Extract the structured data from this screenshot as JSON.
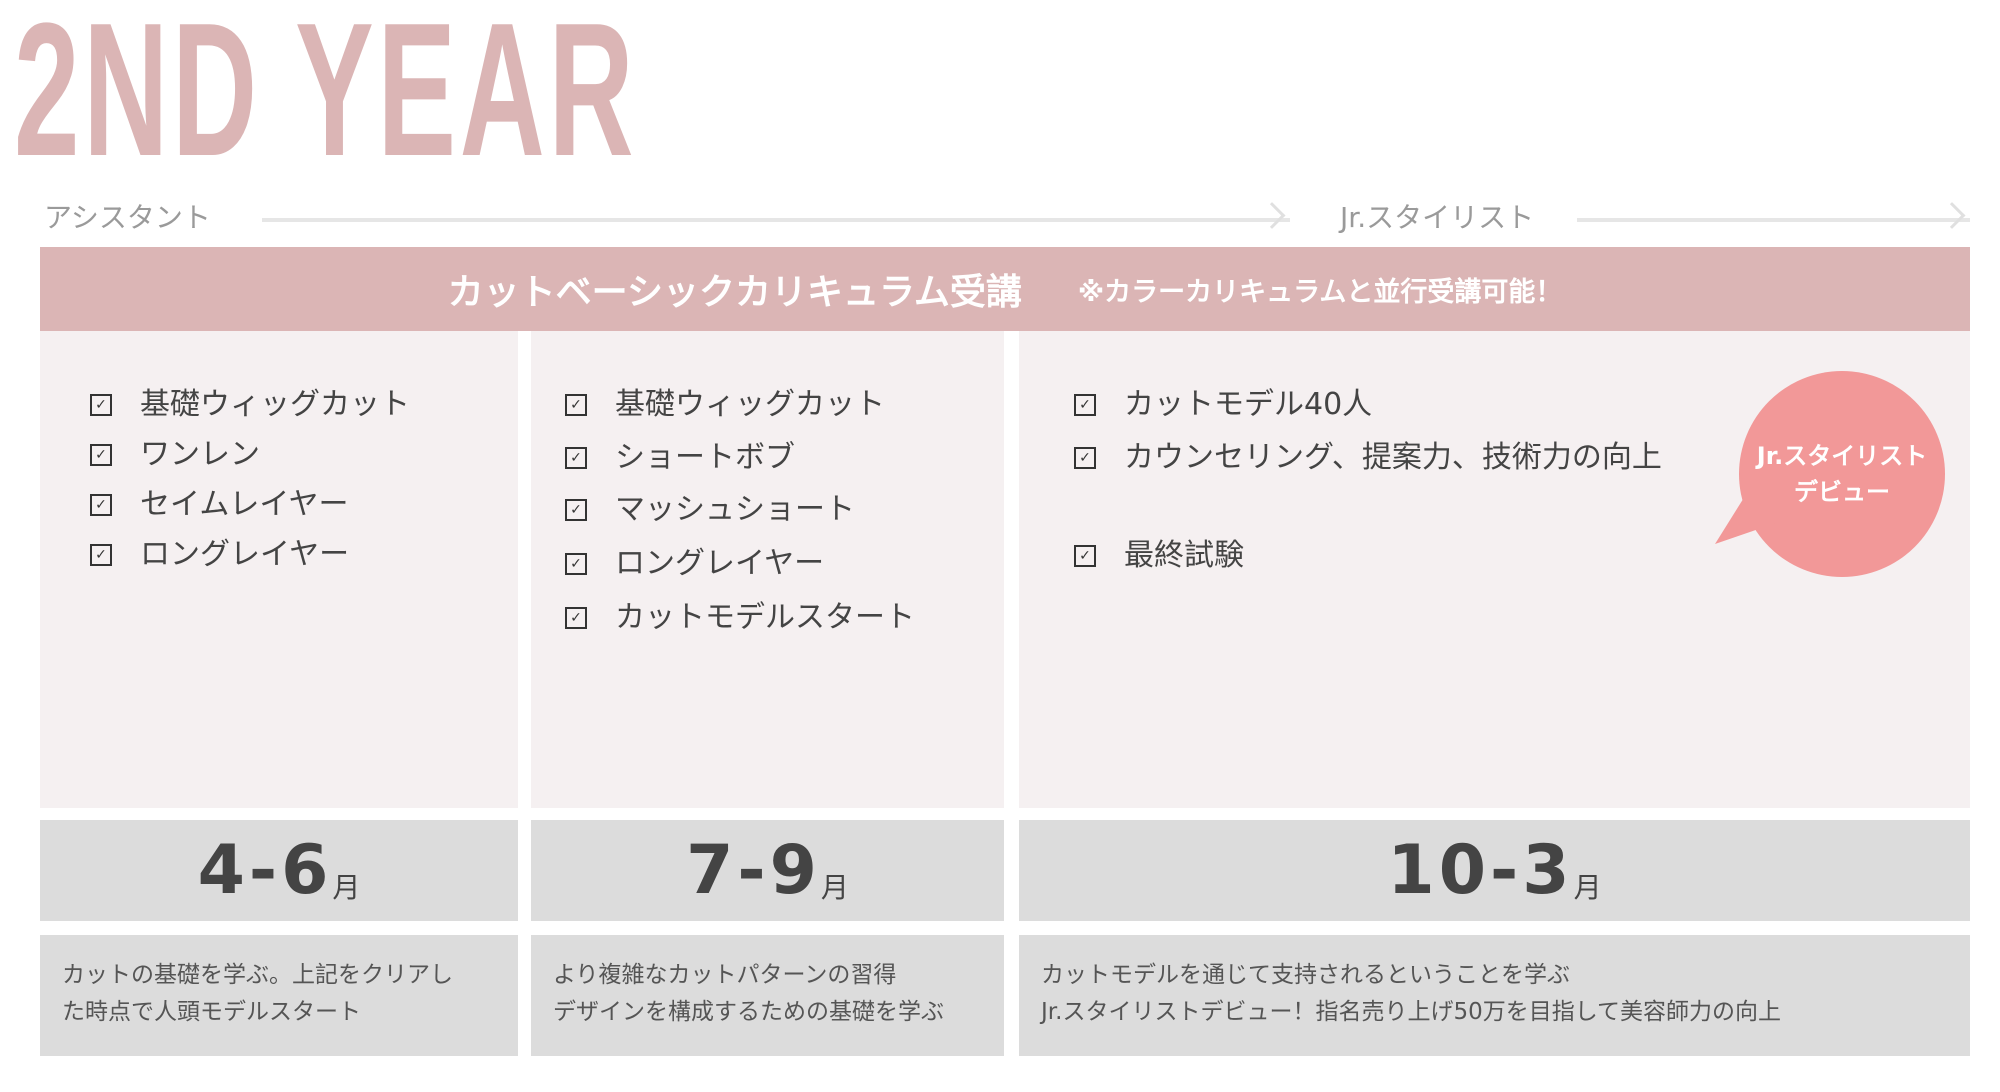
{
  "title": "2ND YEAR",
  "stages": [
    "アシスタント",
    "Jr.スタイリスト"
  ],
  "band": {
    "main": "カットベーシックカリキュラム受講",
    "sub": "※カラーカリキュラムと並行受講可能！"
  },
  "columns": [
    {
      "items": [
        "基礎ウィッグカット",
        "ワンレン",
        "セイムレイヤー",
        "ロングレイヤー"
      ],
      "month_num": "4-6",
      "month_unit": "月",
      "desc": [
        "カットの基礎を学ぶ。上記をクリアし",
        "た時点で人頭モデルスタート"
      ]
    },
    {
      "items": [
        "基礎ウィッグカット",
        "ショートボブ",
        "マッシュショート",
        "ロングレイヤー",
        "カットモデルスタート"
      ],
      "month_num": "7-9",
      "month_unit": "月",
      "desc": [
        "より複雑なカットパターンの習得",
        "デザインを構成するための基礎を学ぶ"
      ]
    },
    {
      "items": [
        "カットモデル40人",
        "カウンセリング、提案力、技術力の向上",
        "最終試験"
      ],
      "month_num": "10-3",
      "month_unit": "月",
      "desc": [
        "カットモデルを通じて支持されるということを学ぶ",
        "Jr.スタイリストデビュー！指名売り上げ50万を目指して美容師力の向上"
      ]
    }
  ],
  "bubble": [
    "Jr.スタイリスト",
    "デビュー"
  ],
  "check_glyph": "✓",
  "colors": {
    "accent": "#dbb5b5",
    "bubble": "#f29898",
    "panel": "#f5f0f1",
    "gray": "#dcdcdc"
  }
}
